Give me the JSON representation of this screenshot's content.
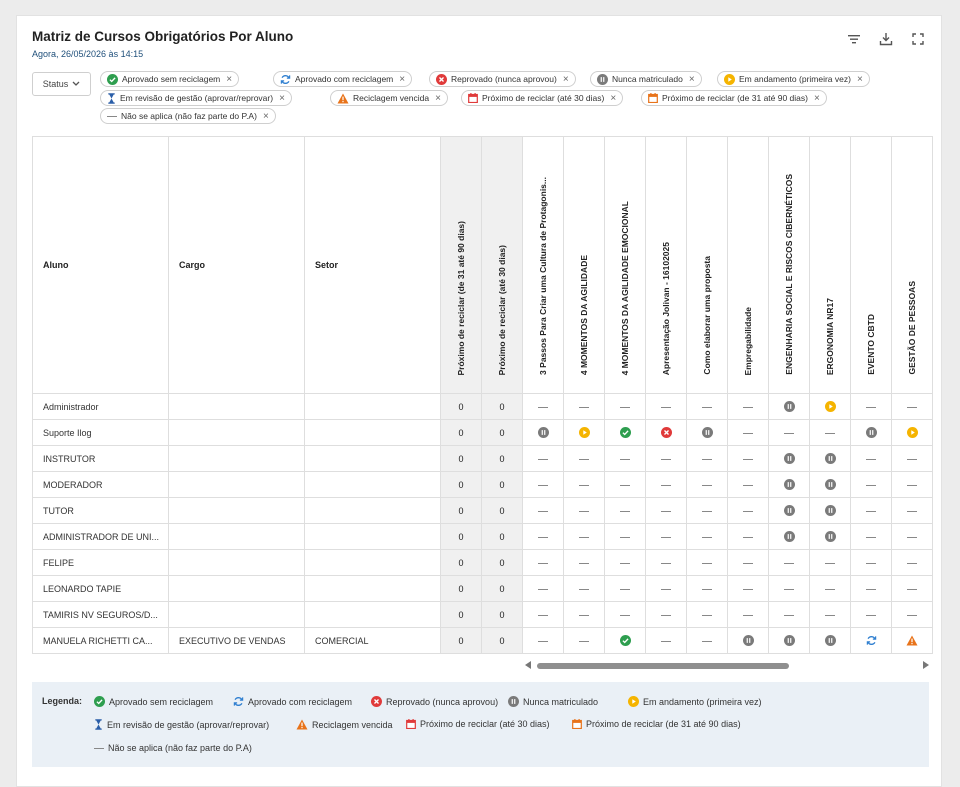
{
  "header": {
    "title": "Matriz de Cursos Obrigatórios Por Aluno",
    "subtitle": "Agora, 26/05/2026 às 14:15",
    "icons": [
      "filter-icon",
      "download-icon",
      "fullscreen-icon"
    ]
  },
  "filter": {
    "status_label": "Status",
    "chips": [
      {
        "label": "Aprovado sem reciclagem",
        "icon": "check-green"
      },
      {
        "label": "Aprovado com reciclagem",
        "icon": "refresh-blue"
      },
      {
        "label": "Reprovado (nunca aprovou)",
        "icon": "x-red"
      },
      {
        "label": "Nunca matriculado",
        "icon": "pause-gray"
      },
      {
        "label": "Em andamento (primeira vez)",
        "icon": "play-yellow"
      },
      {
        "label": "Em revisão de gestão (aprovar/reprovar)",
        "icon": "hourglass-blue"
      },
      {
        "label": "Reciclagem vencida",
        "icon": "warning-orange"
      },
      {
        "label": "Próximo de reciclar (até 30 dias)",
        "icon": "calendar-red"
      },
      {
        "label": "Próximo de reciclar (de 31 até 90 dias)",
        "icon": "calendar-orange"
      },
      {
        "label": "Não se aplica (não faz parte do P.A)",
        "icon": "dash"
      }
    ]
  },
  "table": {
    "col_aluno": "Aluno",
    "col_cargo": "Cargo",
    "col_setor": "Setor",
    "rotated_columns": [
      "Próximo de reciclar (de 31 até 90 dias)",
      "Próximo de reciclar (até 30 dias)",
      "3 Passos Para Criar uma Cultura de Protagonis...",
      "4 MOMENTOS DA AGILIDADE",
      "4 MOMENTOS DA AGILIDADE EMOCIONAL",
      "Apresentação Jolivan - 16102025",
      "Como elaborar uma proposta",
      "Empregabilidade",
      "ENGENHARIA SOCIAL E RISCOS CIBERNÉTICOS",
      "ERGONOMIA NR17",
      "EVENTO CBTD",
      "GESTÃO DE PESSOAS"
    ],
    "rows": [
      {
        "aluno": "Administrador",
        "cargo": "",
        "setor": "",
        "c31_90": "0",
        "c30": "0",
        "cells": [
          "dash",
          "dash",
          "dash",
          "dash",
          "dash",
          "dash",
          "pause-gray",
          "play-yellow",
          "dash",
          "dash"
        ]
      },
      {
        "aluno": "Suporte Ilog",
        "cargo": "",
        "setor": "",
        "c31_90": "0",
        "c30": "0",
        "cells": [
          "pause-gray",
          "play-yellow",
          "check-green",
          "x-red",
          "pause-gray",
          "dash",
          "dash",
          "dash",
          "pause-gray",
          "play-yellow"
        ]
      },
      {
        "aluno": "INSTRUTOR",
        "cargo": "",
        "setor": "",
        "c31_90": "0",
        "c30": "0",
        "cells": [
          "dash",
          "dash",
          "dash",
          "dash",
          "dash",
          "dash",
          "pause-gray",
          "pause-gray",
          "dash",
          "dash"
        ]
      },
      {
        "aluno": "MODERADOR",
        "cargo": "",
        "setor": "",
        "c31_90": "0",
        "c30": "0",
        "cells": [
          "dash",
          "dash",
          "dash",
          "dash",
          "dash",
          "dash",
          "pause-gray",
          "pause-gray",
          "dash",
          "dash"
        ]
      },
      {
        "aluno": "TUTOR",
        "cargo": "",
        "setor": "",
        "c31_90": "0",
        "c30": "0",
        "cells": [
          "dash",
          "dash",
          "dash",
          "dash",
          "dash",
          "dash",
          "pause-gray",
          "pause-gray",
          "dash",
          "dash"
        ]
      },
      {
        "aluno": "ADMINISTRADOR DE UNI...",
        "cargo": "",
        "setor": "",
        "c31_90": "0",
        "c30": "0",
        "cells": [
          "dash",
          "dash",
          "dash",
          "dash",
          "dash",
          "dash",
          "pause-gray",
          "pause-gray",
          "dash",
          "dash"
        ]
      },
      {
        "aluno": "FELIPE",
        "cargo": "",
        "setor": "",
        "c31_90": "0",
        "c30": "0",
        "cells": [
          "dash",
          "dash",
          "dash",
          "dash",
          "dash",
          "dash",
          "dash",
          "dash",
          "dash",
          "dash"
        ]
      },
      {
        "aluno": "LEONARDO TAPIE",
        "cargo": "",
        "setor": "",
        "c31_90": "0",
        "c30": "0",
        "cells": [
          "dash",
          "dash",
          "dash",
          "dash",
          "dash",
          "dash",
          "dash",
          "dash",
          "dash",
          "dash"
        ]
      },
      {
        "aluno": "TAMIRIS NV SEGUROS/D...",
        "cargo": "",
        "setor": "",
        "c31_90": "0",
        "c30": "0",
        "cells": [
          "dash",
          "dash",
          "dash",
          "dash",
          "dash",
          "dash",
          "dash",
          "dash",
          "dash",
          "dash"
        ]
      },
      {
        "aluno": "MANUELA RICHETTI CA...",
        "cargo": "EXECUTIVO DE VENDAS",
        "setor": "COMERCIAL",
        "c31_90": "0",
        "c30": "0",
        "cells": [
          "dash",
          "dash",
          "check-green",
          "dash",
          "dash",
          "pause-gray",
          "pause-gray",
          "pause-gray",
          "refresh-blue",
          "warning-orange"
        ]
      }
    ]
  },
  "legend": {
    "title": "Legenda:",
    "items": [
      {
        "label": "Aprovado sem reciclagem",
        "icon": "check-green"
      },
      {
        "label": "Aprovado com reciclagem",
        "icon": "refresh-blue"
      },
      {
        "label": "Reprovado (nunca aprovou)",
        "icon": "x-red"
      },
      {
        "label": "Nunca matriculado",
        "icon": "pause-gray"
      },
      {
        "label": "Em andamento (primeira vez)",
        "icon": "play-yellow"
      },
      {
        "label": "Em revisão de gestão (aprovar/reprovar)",
        "icon": "hourglass-blue"
      },
      {
        "label": "Reciclagem vencida",
        "icon": "warning-orange"
      },
      {
        "label": "Próximo de reciclar (até 30 dias)",
        "icon": "calendar-red"
      },
      {
        "label": "Próximo de reciclar (de 31 até 90 dias)",
        "icon": "calendar-orange"
      },
      {
        "label": "Não se aplica (não faz parte do P.A)",
        "icon": "dash"
      }
    ]
  },
  "colors": {
    "green": "#2e9e4f",
    "blue": "#2f7fd0",
    "red": "#e03a3a",
    "gray": "#7a7a7a",
    "yellow": "#f5b400",
    "orange": "#e8731a"
  }
}
